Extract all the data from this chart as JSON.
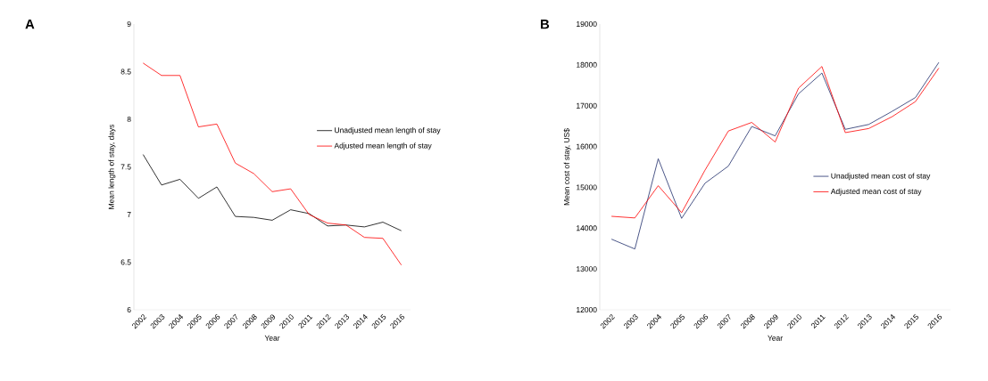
{
  "chart_data": [
    {
      "type": "line",
      "annotations": [
        "A"
      ],
      "xlabel": "Year",
      "ylabel": "Mean length of stay, days",
      "categories": [
        "2002",
        "2003",
        "2004",
        "2005",
        "2006",
        "2007",
        "2008",
        "2009",
        "2010",
        "2011",
        "2012",
        "2013",
        "2014",
        "2015",
        "2016"
      ],
      "series": [
        {
          "name": "Unadjusted mean length of stay",
          "color": "#000000",
          "values": [
            7.63,
            7.31,
            7.37,
            7.17,
            7.29,
            6.98,
            6.97,
            6.94,
            7.05,
            7.01,
            6.88,
            6.89,
            6.87,
            6.92,
            6.83
          ]
        },
        {
          "name": "Adjusted mean length of stay",
          "color": "#ff0000",
          "values": [
            8.59,
            8.46,
            8.46,
            7.92,
            7.95,
            7.54,
            7.43,
            7.24,
            7.27,
            7.0,
            6.91,
            6.89,
            6.76,
            6.75,
            6.47
          ]
        }
      ],
      "ylim": [
        6,
        9
      ],
      "yticks": [
        6,
        6.5,
        7,
        7.5,
        8,
        8.5,
        9
      ],
      "legend": "right"
    },
    {
      "type": "line",
      "annotations": [
        "B"
      ],
      "xlabel": "Year",
      "ylabel": "Mean cost of stay, US$",
      "categories": [
        "2002",
        "2003",
        "2004",
        "2005",
        "2006",
        "2007",
        "2008",
        "2009",
        "2010",
        "2011",
        "2012",
        "2013",
        "2014",
        "2015",
        "2016"
      ],
      "series": [
        {
          "name": "Unadjusted mean cost of stay",
          "color": "#1f2d6b",
          "values": [
            13730,
            13490,
            15700,
            14240,
            15100,
            15520,
            16490,
            16260,
            17290,
            17800,
            16420,
            16540,
            16860,
            17200,
            18060
          ]
        },
        {
          "name": "Adjusted mean cost of stay",
          "color": "#ff0000",
          "values": [
            14290,
            14250,
            15040,
            14380,
            15420,
            16380,
            16590,
            16110,
            17430,
            17960,
            16340,
            16440,
            16730,
            17100,
            17920
          ]
        }
      ],
      "ylim": [
        12000,
        19000
      ],
      "yticks": [
        12000,
        13000,
        14000,
        15000,
        16000,
        17000,
        18000,
        19000
      ],
      "legend": "center right"
    }
  ]
}
